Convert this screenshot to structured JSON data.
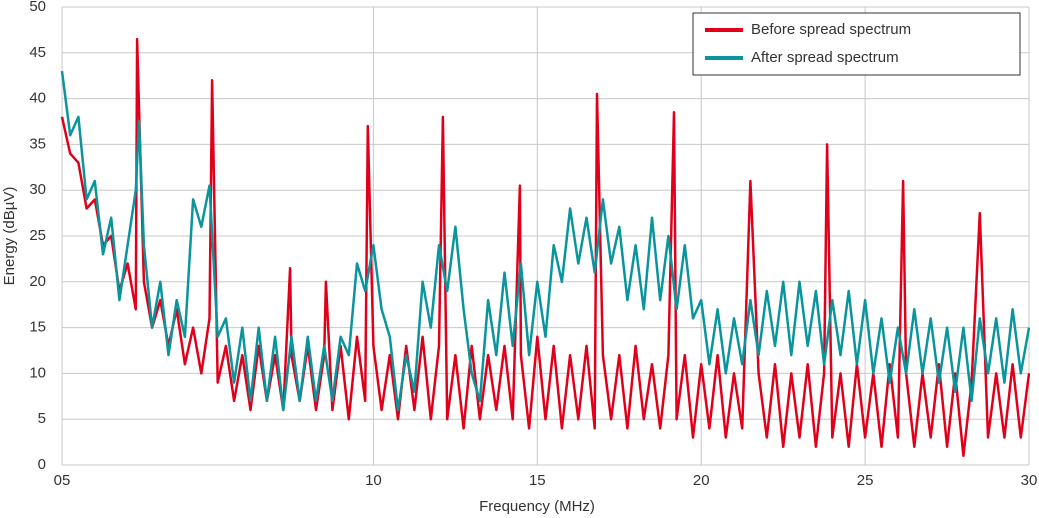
{
  "chart_data": {
    "type": "line",
    "x_label": "Frequency (MHz)",
    "y_label": "Energy (dBµV)",
    "xlim": [
      0.5,
      30
    ],
    "xticks": [
      {
        "value": 0.5,
        "label": "05"
      },
      10,
      15,
      20,
      25,
      30
    ],
    "ylim": [
      0,
      50
    ],
    "yticks": [
      0,
      5,
      10,
      15,
      20,
      25,
      30,
      35,
      40,
      45,
      50
    ],
    "grid": true,
    "legend": "top-right",
    "series": [
      {
        "name": "Before spread spectrum",
        "color": "#e0001b",
        "x": [
          0.5,
          0.75,
          1.0,
          1.25,
          1.5,
          1.75,
          2.0,
          2.25,
          2.5,
          2.75,
          2.79,
          3.0,
          3.25,
          3.5,
          3.75,
          4.0,
          4.25,
          4.5,
          4.75,
          5.0,
          5.08,
          5.25,
          5.5,
          5.75,
          6.0,
          6.25,
          6.5,
          6.75,
          7.0,
          7.25,
          7.46,
          7.5,
          7.75,
          8.0,
          8.25,
          8.5,
          8.55,
          8.75,
          9.0,
          9.25,
          9.5,
          9.75,
          9.83,
          10.0,
          10.25,
          10.5,
          10.75,
          11.0,
          11.25,
          11.5,
          11.75,
          12.0,
          12.12,
          12.25,
          12.5,
          12.75,
          13.0,
          13.25,
          13.5,
          13.75,
          14.0,
          14.25,
          14.47,
          14.5,
          14.75,
          15.0,
          15.25,
          15.5,
          15.75,
          16.0,
          16.25,
          16.5,
          16.75,
          16.82,
          17.0,
          17.25,
          17.5,
          17.75,
          18.0,
          18.25,
          18.5,
          18.75,
          19.0,
          19.17,
          19.25,
          19.5,
          19.75,
          20.0,
          20.25,
          20.5,
          20.75,
          21.0,
          21.25,
          21.5,
          21.75,
          22.0,
          22.25,
          22.5,
          22.75,
          23.0,
          23.25,
          23.5,
          23.75,
          23.84,
          24.0,
          24.25,
          24.5,
          24.75,
          25.0,
          25.25,
          25.5,
          25.75,
          26.0,
          26.16,
          26.25,
          26.5,
          26.75,
          27.0,
          27.25,
          27.5,
          27.75,
          28.0,
          28.25,
          28.5,
          28.75,
          29.0,
          29.25,
          29.5,
          29.75,
          30.0
        ],
        "values": [
          38,
          34,
          33,
          28,
          29,
          24,
          25,
          19,
          22,
          17,
          46.5,
          20,
          15,
          18,
          13,
          17,
          11,
          15,
          10,
          16,
          42,
          9,
          13,
          7,
          12,
          6,
          13,
          7,
          12,
          6,
          21.5,
          12,
          7,
          13,
          6,
          12,
          20,
          6,
          13,
          5,
          14,
          7,
          37,
          13,
          6,
          12,
          5,
          13,
          6,
          14,
          5,
          13,
          38,
          5,
          12,
          4,
          13,
          5,
          12,
          6,
          13,
          5,
          30.5,
          12,
          4,
          14,
          5,
          13,
          4,
          12,
          5,
          13,
          4,
          40.5,
          12,
          5,
          12,
          4,
          13,
          5,
          11,
          4,
          12,
          38.5,
          5,
          12,
          3,
          11,
          4,
          12,
          3,
          10,
          4,
          31,
          10,
          3,
          11,
          2,
          10,
          3,
          11,
          2,
          10,
          35,
          3,
          10,
          2,
          11,
          3,
          10,
          2,
          11,
          3,
          31,
          10,
          2,
          10,
          3,
          11,
          2,
          10,
          1,
          9,
          27.5,
          3,
          10,
          3,
          11,
          3,
          10
        ]
      },
      {
        "name": "After spread spectrum",
        "color": "#0a959d",
        "x": [
          0.5,
          0.75,
          1.0,
          1.25,
          1.5,
          1.75,
          2.0,
          2.25,
          2.5,
          2.75,
          2.85,
          3.0,
          3.25,
          3.5,
          3.75,
          4.0,
          4.25,
          4.5,
          4.75,
          5.0,
          5.25,
          5.5,
          5.75,
          6.0,
          6.25,
          6.5,
          6.75,
          7.0,
          7.25,
          7.5,
          7.75,
          8.0,
          8.25,
          8.5,
          8.75,
          9.0,
          9.25,
          9.5,
          9.75,
          10.0,
          10.25,
          10.5,
          10.75,
          11.0,
          11.25,
          11.5,
          11.75,
          12.0,
          12.25,
          12.5,
          12.75,
          13.0,
          13.25,
          13.5,
          13.75,
          14.0,
          14.25,
          14.5,
          14.75,
          15.0,
          15.25,
          15.5,
          15.75,
          16.0,
          16.25,
          16.5,
          16.75,
          17.0,
          17.25,
          17.5,
          17.75,
          18.0,
          18.25,
          18.5,
          18.75,
          19.0,
          19.25,
          19.5,
          19.75,
          20.0,
          20.25,
          20.5,
          20.75,
          21.0,
          21.25,
          21.5,
          21.75,
          22.0,
          22.25,
          22.5,
          22.75,
          23.0,
          23.25,
          23.5,
          23.75,
          24.0,
          24.25,
          24.5,
          24.75,
          25.0,
          25.25,
          25.5,
          25.75,
          26.0,
          26.25,
          26.5,
          26.75,
          27.0,
          27.25,
          27.5,
          27.75,
          28.0,
          28.25,
          28.5,
          28.75,
          29.0,
          29.25,
          29.5,
          29.75,
          30.0
        ],
        "values": [
          43,
          36,
          38,
          29,
          31,
          23,
          27,
          18,
          24,
          30,
          37.5,
          24,
          15,
          20,
          12,
          18,
          14,
          29,
          26,
          30.5,
          14,
          16,
          9,
          15,
          7,
          15,
          7,
          14,
          6,
          14,
          7,
          14,
          7,
          13,
          7,
          14,
          12,
          22,
          19,
          24,
          17,
          14,
          6,
          12,
          8,
          20,
          15,
          24,
          19,
          26,
          17,
          10,
          7,
          18,
          12,
          21,
          13,
          22,
          12,
          20,
          14,
          24,
          20,
          28,
          22,
          27,
          21,
          29,
          22,
          26,
          18,
          24,
          17,
          27,
          18,
          25,
          17,
          24,
          16,
          18,
          11,
          17,
          10,
          16,
          11,
          18,
          12,
          19,
          13,
          20,
          12,
          20,
          13,
          19,
          11,
          18,
          12,
          19,
          11,
          18,
          10,
          16,
          9,
          15,
          10,
          17,
          10,
          16,
          9,
          15,
          8,
          15,
          7,
          16,
          10,
          16,
          9,
          17,
          10,
          15
        ]
      }
    ]
  }
}
